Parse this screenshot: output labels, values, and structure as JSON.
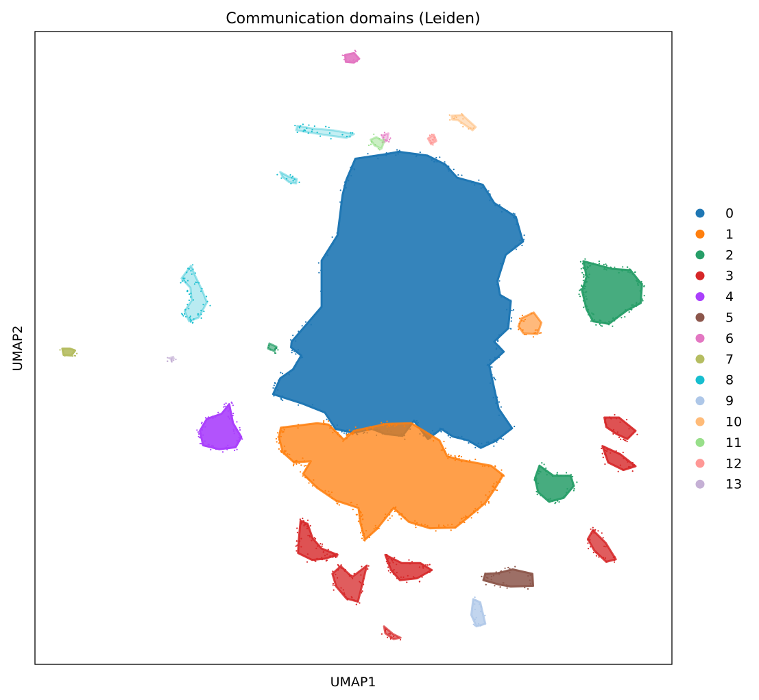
{
  "chart_data": {
    "type": "scatter",
    "title": "Communication domains (Leiden)",
    "xlabel": "UMAP1",
    "ylabel": "UMAP2",
    "xlim": [
      0,
      100
    ],
    "ylim": [
      0,
      100
    ],
    "grid": false,
    "show_ticks": false,
    "legend_position": "right-outside",
    "categories": [
      {
        "label": "0",
        "color": "#1f77b4"
      },
      {
        "label": "1",
        "color": "#ff7f0e"
      },
      {
        "label": "2",
        "color": "#279e68"
      },
      {
        "label": "3",
        "color": "#d62728"
      },
      {
        "label": "4",
        "color": "#aa40fc"
      },
      {
        "label": "5",
        "color": "#8c564b"
      },
      {
        "label": "6",
        "color": "#e377c2"
      },
      {
        "label": "7",
        "color": "#b5bd61"
      },
      {
        "label": "8",
        "color": "#17becf"
      },
      {
        "label": "9",
        "color": "#aec7e8"
      },
      {
        "label": "10",
        "color": "#ffbb78"
      },
      {
        "label": "11",
        "color": "#98df8a"
      },
      {
        "label": "12",
        "color": "#ff9896"
      },
      {
        "label": "13",
        "color": "#c5b0d5"
      }
    ],
    "clusters": [
      {
        "category": "0",
        "outline": [
          [
            40.3,
            51.0
          ],
          [
            45.0,
            56.5
          ],
          [
            45.0,
            63.8
          ],
          [
            47.5,
            67.8
          ],
          [
            48.3,
            74.2
          ],
          [
            48.9,
            76.6
          ],
          [
            50.3,
            79.9
          ],
          [
            54.9,
            80.6
          ],
          [
            57.1,
            81.0
          ],
          [
            61.6,
            80.4
          ],
          [
            64.4,
            79.0
          ],
          [
            66.3,
            76.9
          ],
          [
            70.3,
            75.8
          ],
          [
            72.1,
            72.9
          ],
          [
            75.5,
            70.7
          ],
          [
            76.6,
            66.8
          ],
          [
            73.9,
            64.7
          ],
          [
            72.6,
            60.6
          ],
          [
            73.0,
            58.4
          ],
          [
            74.7,
            57.4
          ],
          [
            74.3,
            53.1
          ],
          [
            72.1,
            51.0
          ],
          [
            73.6,
            49.4
          ],
          [
            71.3,
            47.3
          ],
          [
            71.9,
            44.5
          ],
          [
            72.8,
            40.4
          ],
          [
            74.9,
            37.3
          ],
          [
            72.3,
            35.3
          ],
          [
            70.0,
            34.2
          ],
          [
            68.0,
            35.4
          ],
          [
            65.6,
            36.0
          ],
          [
            63.8,
            37.2
          ],
          [
            61.7,
            35.6
          ],
          [
            59.5,
            38.5
          ],
          [
            57.7,
            36.1
          ],
          [
            55.0,
            36.4
          ],
          [
            52.9,
            37.2
          ],
          [
            50.0,
            36.6
          ],
          [
            47.2,
            37.2
          ],
          [
            45.5,
            39.8
          ],
          [
            42.0,
            41.2
          ],
          [
            37.4,
            42.7
          ],
          [
            38.5,
            45.2
          ],
          [
            40.5,
            46.6
          ],
          [
            41.8,
            48.8
          ],
          [
            40.2,
            50.1
          ]
        ],
        "density": 0.9
      },
      {
        "category": "1",
        "outline": [
          [
            38.6,
            37.4
          ],
          [
            44.3,
            38.1
          ],
          [
            46.1,
            37.9
          ],
          [
            48.5,
            35.5
          ],
          [
            50.1,
            36.9
          ],
          [
            55.1,
            38.0
          ],
          [
            59.1,
            38.1
          ],
          [
            63.5,
            35.4
          ],
          [
            64.7,
            32.9
          ],
          [
            66.8,
            32.3
          ],
          [
            71.6,
            31.4
          ],
          [
            73.5,
            29.9
          ],
          [
            72.1,
            27.6
          ],
          [
            70.7,
            25.5
          ],
          [
            68.1,
            23.3
          ],
          [
            66.0,
            21.6
          ],
          [
            62.0,
            21.5
          ],
          [
            58.7,
            22.5
          ],
          [
            56.3,
            24.7
          ],
          [
            53.7,
            21.4
          ],
          [
            51.8,
            19.7
          ],
          [
            51.1,
            22.3
          ],
          [
            50.8,
            24.7
          ],
          [
            47.2,
            25.9
          ],
          [
            44.3,
            27.9
          ],
          [
            42.1,
            30.1
          ],
          [
            43.3,
            32.1
          ],
          [
            40.7,
            31.9
          ],
          [
            38.9,
            33.5
          ],
          [
            38.3,
            35.9
          ]
        ],
        "density": 0.75
      },
      {
        "category": "1",
        "outline": [
          [
            76.4,
            54.7
          ],
          [
            78.3,
            55.6
          ],
          [
            79.5,
            54.0
          ],
          [
            78.9,
            52.2
          ],
          [
            76.7,
            52.3
          ],
          [
            75.9,
            53.4
          ]
        ],
        "density": 0.55
      },
      {
        "category": "2",
        "outline": [
          [
            86.1,
            63.7
          ],
          [
            90.6,
            62.5
          ],
          [
            93.5,
            62.3
          ],
          [
            95.3,
            60.0
          ],
          [
            95.1,
            57.1
          ],
          [
            92.9,
            55.9
          ],
          [
            90.1,
            53.8
          ],
          [
            87.6,
            54.2
          ],
          [
            86.6,
            56.1
          ],
          [
            85.9,
            59.0
          ],
          [
            86.6,
            61.3
          ]
        ],
        "density": 0.85
      },
      {
        "category": "2",
        "outline": [
          [
            79.2,
            31.4
          ],
          [
            81.4,
            29.8
          ],
          [
            84.1,
            29.8
          ],
          [
            84.6,
            28.2
          ],
          [
            83.0,
            26.3
          ],
          [
            80.7,
            25.7
          ],
          [
            79.0,
            27.2
          ],
          [
            78.5,
            29.4
          ]
        ],
        "density": 0.85
      },
      {
        "category": "2",
        "outline": [
          [
            36.8,
            50.7
          ],
          [
            37.9,
            50.2
          ],
          [
            37.6,
            49.5
          ],
          [
            36.6,
            49.9
          ]
        ],
        "density": 0.6
      },
      {
        "category": "3",
        "outline": [
          [
            41.7,
            22.7
          ],
          [
            42.8,
            22.2
          ],
          [
            43.6,
            19.9
          ],
          [
            45.0,
            18.3
          ],
          [
            47.5,
            17.3
          ],
          [
            45.5,
            16.7
          ],
          [
            43.5,
            16.5
          ],
          [
            41.3,
            17.6
          ],
          [
            41.4,
            19.5
          ]
        ],
        "density": 0.8
      },
      {
        "category": "3",
        "outline": [
          [
            48.0,
            15.5
          ],
          [
            49.8,
            13.8
          ],
          [
            52.1,
            15.6
          ],
          [
            51.3,
            12.3
          ],
          [
            50.7,
            9.9
          ],
          [
            48.9,
            10.4
          ],
          [
            47.3,
            12.3
          ],
          [
            46.7,
            14.3
          ]
        ],
        "density": 0.75
      },
      {
        "category": "3",
        "outline": [
          [
            55.0,
            17.3
          ],
          [
            57.6,
            16.0
          ],
          [
            60.5,
            16.0
          ],
          [
            62.3,
            14.9
          ],
          [
            60.0,
            13.6
          ],
          [
            57.3,
            13.3
          ],
          [
            55.9,
            14.9
          ]
        ],
        "density": 0.8
      },
      {
        "category": "3",
        "outline": [
          [
            89.4,
            39.0
          ],
          [
            91.7,
            39.0
          ],
          [
            94.3,
            36.9
          ],
          [
            93.0,
            35.6
          ],
          [
            91.3,
            36.4
          ],
          [
            89.7,
            37.5
          ]
        ],
        "density": 0.8
      },
      {
        "category": "3",
        "outline": [
          [
            89.1,
            34.5
          ],
          [
            91.9,
            33.2
          ],
          [
            94.3,
            31.3
          ],
          [
            92.4,
            30.7
          ],
          [
            90.0,
            31.9
          ]
        ],
        "density": 0.8
      },
      {
        "category": "3",
        "outline": [
          [
            87.6,
            21.2
          ],
          [
            89.6,
            19.2
          ],
          [
            91.2,
            16.6
          ],
          [
            89.7,
            16.2
          ],
          [
            87.8,
            18.0
          ],
          [
            86.8,
            19.8
          ]
        ],
        "density": 0.75
      },
      {
        "category": "3",
        "outline": [
          [
            54.8,
            6.0
          ],
          [
            56.2,
            4.8
          ],
          [
            57.4,
            4.2
          ],
          [
            56.3,
            4.0
          ],
          [
            55.0,
            4.9
          ]
        ],
        "density": 0.6
      },
      {
        "category": "4",
        "outline": [
          [
            27.0,
            38.8
          ],
          [
            29.3,
            39.6
          ],
          [
            30.5,
            41.1
          ],
          [
            31.1,
            38.1
          ],
          [
            32.4,
            35.9
          ],
          [
            31.5,
            34.3
          ],
          [
            28.9,
            34.0
          ],
          [
            26.4,
            34.6
          ],
          [
            25.9,
            36.9
          ]
        ],
        "density": 0.9
      },
      {
        "category": "5",
        "outline": [
          [
            70.7,
            14.3
          ],
          [
            72.6,
            14.4
          ],
          [
            75.0,
            15.0
          ],
          [
            78.1,
            14.3
          ],
          [
            78.2,
            12.4
          ],
          [
            74.7,
            12.3
          ],
          [
            72.9,
            12.6
          ],
          [
            70.4,
            13.3
          ]
        ],
        "density": 0.85
      },
      {
        "category": "6",
        "outline": [
          [
            48.7,
            96.3
          ],
          [
            50.1,
            96.6
          ],
          [
            50.9,
            95.7
          ],
          [
            50.1,
            95.1
          ],
          [
            48.8,
            95.2
          ]
        ],
        "density": 0.9
      },
      {
        "category": "6",
        "outline": [
          [
            54.5,
            83.6
          ],
          [
            55.5,
            83.9
          ],
          [
            55.3,
            82.8
          ],
          [
            54.8,
            82.5
          ]
        ],
        "density": 0.4
      },
      {
        "category": "7",
        "outline": [
          [
            4.3,
            49.9
          ],
          [
            5.5,
            49.9
          ],
          [
            6.3,
            49.6
          ],
          [
            5.7,
            48.8
          ],
          [
            4.5,
            48.9
          ]
        ],
        "density": 0.9
      },
      {
        "category": "8",
        "outline": [
          [
            41.2,
            85.1
          ],
          [
            43.5,
            84.7
          ],
          [
            46.8,
            84.4
          ],
          [
            50.1,
            83.8
          ],
          [
            48.9,
            83.2
          ],
          [
            46.0,
            83.6
          ],
          [
            43.3,
            84.0
          ],
          [
            41.0,
            84.4
          ]
        ],
        "density": 0.25
      },
      {
        "category": "8",
        "outline": [
          [
            38.5,
            77.8
          ],
          [
            39.8,
            77.1
          ],
          [
            41.1,
            76.7
          ],
          [
            41.0,
            76.0
          ],
          [
            39.9,
            76.2
          ],
          [
            38.9,
            77.0
          ]
        ],
        "density": 0.3
      },
      {
        "category": "8",
        "outline": [
          [
            23.0,
            61.0
          ],
          [
            24.5,
            63.0
          ],
          [
            25.1,
            61.5
          ],
          [
            26.3,
            59.0
          ],
          [
            27.0,
            57.2
          ],
          [
            25.7,
            54.8
          ],
          [
            24.2,
            54.2
          ],
          [
            23.5,
            55.8
          ],
          [
            24.6,
            57.5
          ],
          [
            24.4,
            59.5
          ]
        ],
        "density": 0.3
      },
      {
        "category": "9",
        "outline": [
          [
            68.8,
            10.3
          ],
          [
            69.9,
            9.8
          ],
          [
            70.7,
            6.4
          ],
          [
            69.3,
            6.0
          ],
          [
            68.5,
            7.8
          ]
        ],
        "density": 0.75
      },
      {
        "category": "10",
        "outline": [
          [
            65.4,
            86.7
          ],
          [
            67.1,
            86.8
          ],
          [
            69.2,
            84.9
          ],
          [
            68.7,
            84.4
          ],
          [
            66.4,
            86.0
          ],
          [
            65.5,
            86.1
          ]
        ],
        "density": 0.45
      },
      {
        "category": "11",
        "outline": [
          [
            52.7,
            82.9
          ],
          [
            53.6,
            83.3
          ],
          [
            54.8,
            82.6
          ],
          [
            54.4,
            81.5
          ],
          [
            53.3,
            82.0
          ]
        ],
        "density": 0.5
      },
      {
        "category": "12",
        "outline": [
          [
            61.7,
            83.1
          ],
          [
            62.6,
            83.7
          ],
          [
            63.0,
            82.7
          ],
          [
            62.2,
            82.2
          ]
        ],
        "density": 0.6
      },
      {
        "category": "13",
        "outline": [
          [
            21.2,
            48.4
          ],
          [
            21.7,
            48.6
          ],
          [
            21.8,
            48.3
          ],
          [
            21.4,
            48.1
          ]
        ],
        "density": 0.5
      }
    ]
  }
}
